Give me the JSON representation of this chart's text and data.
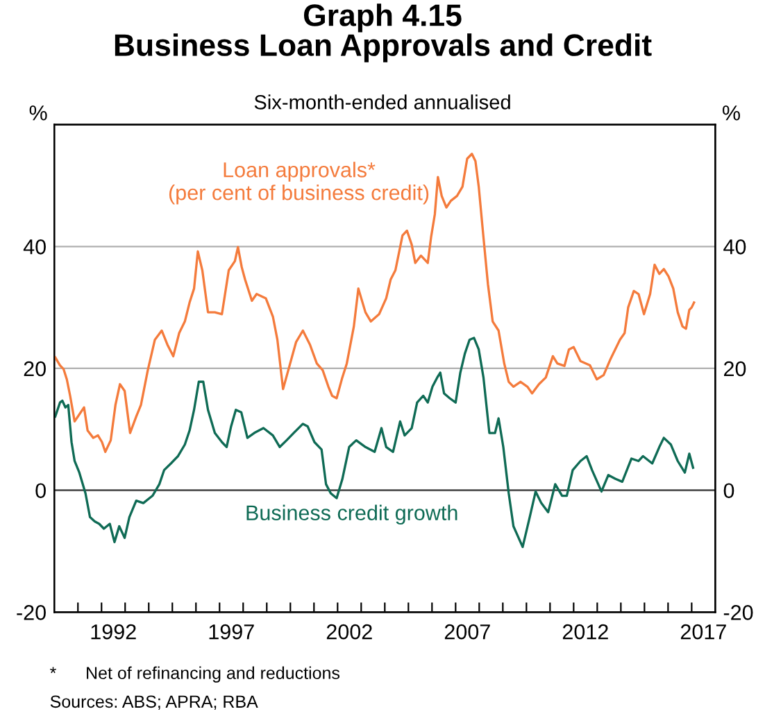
{
  "chart_data": {
    "type": "line",
    "title": "Graph 4.15\nBusiness Loan Approvals and Credit",
    "subtitle": "Six-month-ended annualised",
    "ylabel": "%",
    "y2label": "%",
    "annotations": [
      "*      Net of refinancing and reductions",
      "Sources: ABS; APRA; RBA"
    ],
    "series": [
      {
        "name": "Loan approvals*\n(per cent of business credit)",
        "color": "#f47b3c",
        "x": [
          1990.04,
          1990.24,
          1990.39,
          1990.53,
          1990.67,
          1990.86,
          1991.12,
          1991.26,
          1991.41,
          1991.65,
          1991.85,
          1992.02,
          1992.16,
          1992.39,
          1992.59,
          1992.78,
          1992.98,
          1993.21,
          1993.47,
          1993.67,
          1993.96,
          1994.26,
          1994.55,
          1994.79,
          1995.04,
          1995.29,
          1995.53,
          1995.73,
          1995.92,
          1996.08,
          1996.27,
          1996.51,
          1996.8,
          1997.1,
          1997.39,
          1997.65,
          1997.78,
          1997.94,
          1998.08,
          1998.37,
          1998.57,
          1998.96,
          1999.26,
          1999.45,
          1999.69,
          1999.94,
          2000.24,
          2000.53,
          2000.83,
          2001.12,
          2001.37,
          2001.61,
          2001.77,
          2001.96,
          2002.2,
          2002.39,
          2002.69,
          2002.88,
          2003.18,
          2003.41,
          2003.76,
          2004.06,
          2004.25,
          2004.45,
          2004.65,
          2004.75,
          2004.94,
          2005.14,
          2005.29,
          2005.53,
          2005.82,
          2005.96,
          2006.12,
          2006.25,
          2006.41,
          2006.61,
          2006.8,
          2007.06,
          2007.29,
          2007.49,
          2007.69,
          2007.84,
          2007.98,
          2008.18,
          2008.37,
          2008.57,
          2008.82,
          2009.06,
          2009.25,
          2009.45,
          2009.75,
          2010.04,
          2010.24,
          2010.53,
          2010.82,
          2011.12,
          2011.31,
          2011.61,
          2011.8,
          2012.0,
          2012.29,
          2012.69,
          2012.98,
          2013.27,
          2013.57,
          2013.76,
          2013.96,
          2014.16,
          2014.31,
          2014.55,
          2014.75,
          2014.98,
          2015.24,
          2015.43,
          2015.63,
          2015.82,
          2016.02,
          2016.22,
          2016.41,
          2016.61,
          2016.76,
          2016.9,
          2017.0,
          2017.1
        ],
        "values": [
          21.8,
          20.5,
          19.9,
          18.2,
          15.5,
          11.3,
          12.8,
          13.6,
          9.8,
          8.6,
          9.0,
          7.9,
          6.3,
          8.2,
          14.0,
          17.4,
          16.3,
          9.4,
          12.1,
          14.0,
          19.7,
          24.7,
          26.2,
          23.9,
          22.0,
          25.8,
          27.7,
          30.8,
          33.1,
          39.2,
          36.1,
          29.2,
          29.2,
          28.9,
          36.1,
          37.6,
          39.9,
          36.6,
          34.6,
          31.1,
          32.2,
          31.5,
          28.5,
          24.7,
          16.6,
          20.1,
          24.3,
          26.2,
          23.9,
          20.8,
          19.7,
          17.0,
          15.5,
          15.1,
          18.5,
          20.8,
          26.9,
          33.1,
          29.2,
          27.7,
          28.9,
          31.5,
          34.6,
          36.1,
          39.9,
          41.8,
          42.6,
          40.3,
          37.3,
          38.5,
          37.3,
          41.5,
          45.3,
          51.4,
          48.3,
          46.4,
          47.5,
          48.3,
          49.8,
          54.4,
          55.2,
          54.0,
          49.8,
          41.5,
          33.8,
          27.7,
          26.2,
          20.8,
          17.8,
          17.0,
          17.8,
          17.0,
          15.9,
          17.4,
          18.5,
          22.0,
          20.8,
          20.4,
          23.1,
          23.5,
          21.2,
          20.5,
          18.2,
          18.9,
          21.6,
          23.1,
          24.7,
          25.8,
          30.0,
          32.7,
          32.2,
          28.9,
          32.2,
          37.0,
          35.5,
          36.3,
          35.1,
          33.1,
          29.2,
          26.9,
          26.5,
          29.6,
          30.0,
          30.8
        ]
      },
      {
        "name": "Business credit growth",
        "color": "#0f6b55",
        "x": [
          1990.04,
          1990.24,
          1990.34,
          1990.47,
          1990.59,
          1990.73,
          1990.86,
          1991.06,
          1991.32,
          1991.51,
          1991.71,
          1991.9,
          1992.1,
          1992.35,
          1992.55,
          1992.75,
          1992.98,
          1993.18,
          1993.47,
          1993.77,
          1994.16,
          1994.45,
          1994.65,
          1994.94,
          1995.24,
          1995.53,
          1995.73,
          1995.92,
          1996.12,
          1996.31,
          1996.51,
          1996.8,
          1997.1,
          1997.3,
          1997.49,
          1997.69,
          1997.92,
          1998.18,
          1998.47,
          1998.86,
          1999.26,
          1999.55,
          1999.84,
          2000.14,
          2000.53,
          2000.73,
          2001.02,
          2001.32,
          2001.51,
          2001.71,
          2001.96,
          2002.2,
          2002.49,
          2002.79,
          2003.18,
          2003.57,
          2003.86,
          2004.06,
          2004.35,
          2004.65,
          2004.84,
          2005.14,
          2005.37,
          2005.63,
          2005.82,
          2006.02,
          2006.22,
          2006.35,
          2006.51,
          2006.75,
          2007.0,
          2007.2,
          2007.39,
          2007.59,
          2007.78,
          2007.98,
          2008.18,
          2008.43,
          2008.67,
          2008.82,
          2009.02,
          2009.25,
          2009.45,
          2009.84,
          2010.14,
          2010.39,
          2010.63,
          2010.92,
          2011.22,
          2011.51,
          2011.71,
          2011.96,
          2012.29,
          2012.55,
          2012.78,
          2013.18,
          2013.47,
          2013.76,
          2014.06,
          2014.45,
          2014.75,
          2014.94,
          2015.33,
          2015.63,
          2015.82,
          2016.12,
          2016.41,
          2016.71,
          2016.9,
          2017.06
        ],
        "values": [
          12.1,
          14.4,
          14.7,
          13.6,
          14.0,
          7.9,
          4.8,
          2.9,
          -0.5,
          -4.4,
          -5.1,
          -5.5,
          -6.3,
          -5.5,
          -8.5,
          -5.9,
          -7.8,
          -4.4,
          -1.7,
          -2.1,
          -0.9,
          1.0,
          3.3,
          4.4,
          5.6,
          7.5,
          9.8,
          13.2,
          17.8,
          17.8,
          13.2,
          9.4,
          7.9,
          7.1,
          10.5,
          13.2,
          12.8,
          8.6,
          9.4,
          10.2,
          9.0,
          7.1,
          8.2,
          9.4,
          10.9,
          10.5,
          7.9,
          6.7,
          1.0,
          -0.5,
          -1.3,
          1.8,
          7.1,
          8.2,
          7.1,
          6.3,
          10.2,
          7.1,
          6.3,
          11.3,
          9.0,
          10.2,
          14.4,
          15.5,
          14.4,
          17.0,
          18.5,
          19.3,
          15.9,
          15.1,
          14.4,
          19.3,
          22.4,
          24.7,
          25.0,
          23.1,
          18.5,
          9.4,
          9.4,
          11.8,
          7.1,
          -0.5,
          -5.9,
          -9.3,
          -4.4,
          -0.2,
          -2.1,
          -3.6,
          1.0,
          -0.9,
          -0.9,
          3.3,
          4.8,
          5.6,
          3.3,
          -0.2,
          2.5,
          1.9,
          1.4,
          5.2,
          4.8,
          5.6,
          4.4,
          7.1,
          8.6,
          7.5,
          4.8,
          2.9,
          6.0,
          3.7
        ]
      }
    ],
    "xlim": [
      1990,
      2018
    ],
    "xticks": [
      {
        "value": 1991,
        "label": null
      },
      {
        "value": 1992,
        "label": null
      },
      {
        "value": 1993,
        "label": null
      },
      {
        "value": 1994,
        "label": null
      },
      {
        "value": 1995,
        "label": null
      },
      {
        "value": 1996,
        "label": null
      },
      {
        "value": 1997,
        "label": null
      },
      {
        "value": 1998,
        "label": null
      },
      {
        "value": 1999,
        "label": null
      },
      {
        "value": 2000,
        "label": null
      },
      {
        "value": 2001,
        "label": null
      },
      {
        "value": 2002,
        "label": null
      },
      {
        "value": 2003,
        "label": null
      },
      {
        "value": 2004,
        "label": null
      },
      {
        "value": 2005,
        "label": null
      },
      {
        "value": 2006,
        "label": null
      },
      {
        "value": 2007,
        "label": null
      },
      {
        "value": 2008,
        "label": null
      },
      {
        "value": 2009,
        "label": null
      },
      {
        "value": 2010,
        "label": null
      },
      {
        "value": 2011,
        "label": null
      },
      {
        "value": 2012,
        "label": null
      },
      {
        "value": 2013,
        "label": null
      },
      {
        "value": 2014,
        "label": null
      },
      {
        "value": 2015,
        "label": null
      },
      {
        "value": 2016,
        "label": null
      },
      {
        "value": 2017,
        "label": null
      },
      {
        "value": 1992.5,
        "label": "1992"
      },
      {
        "value": 1997.5,
        "label": "1997"
      },
      {
        "value": 2002.5,
        "label": "2002"
      },
      {
        "value": 2007.5,
        "label": "2007"
      },
      {
        "value": 2012.5,
        "label": "2012"
      },
      {
        "value": 2017.5,
        "label": "2017"
      }
    ],
    "ylim": [
      -20,
      60
    ],
    "yticks": [
      -20,
      0,
      20,
      40
    ],
    "y2lim": [
      -20,
      60
    ],
    "y2ticks": [
      -20,
      0,
      20,
      40
    ],
    "ref_lines": [
      {
        "axis": "y",
        "value": 0,
        "color": "#555555"
      }
    ],
    "grid": "y",
    "legend": false
  }
}
